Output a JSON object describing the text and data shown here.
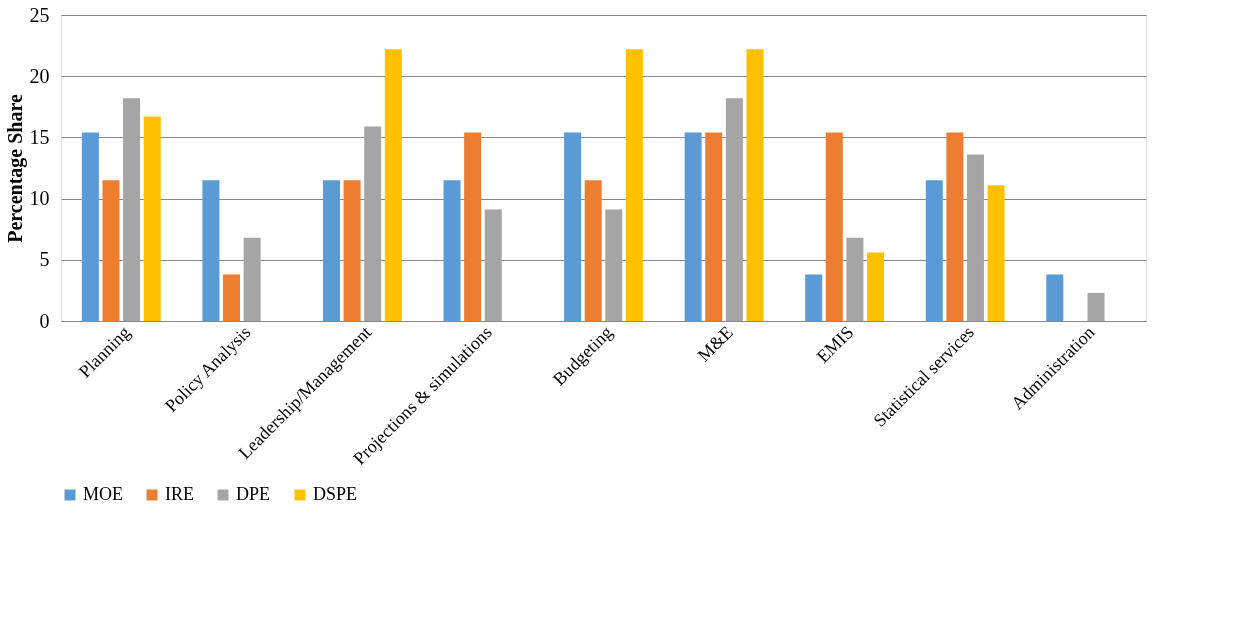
{
  "chart_data": {
    "type": "bar",
    "ylabel": "Percentage Share",
    "categories": [
      "Planning",
      "Policy Analysis",
      "Leadership/Management",
      "Projections & simulations",
      "Budgeting",
      "M&E",
      "EMIS",
      "Statistical services",
      "Administration"
    ],
    "series": [
      {
        "name": "MOE",
        "color": "#5b9bd5",
        "values": [
          15.4,
          11.5,
          11.5,
          11.5,
          15.4,
          15.4,
          3.8,
          11.5,
          3.8
        ]
      },
      {
        "name": "IRE",
        "color": "#ed7d31",
        "values": [
          11.5,
          3.8,
          11.5,
          15.4,
          11.5,
          15.4,
          15.4,
          15.4,
          0
        ]
      },
      {
        "name": "DPE",
        "color": "#a5a5a5",
        "values": [
          18.2,
          6.8,
          15.9,
          9.1,
          9.1,
          18.2,
          6.8,
          13.6,
          2.3
        ]
      },
      {
        "name": "DSPE",
        "color": "#ffc000",
        "values": [
          16.7,
          0,
          22.2,
          0,
          22.2,
          22.2,
          5.6,
          11.1,
          0
        ]
      }
    ],
    "ylim": [
      0,
      25
    ],
    "yticks": [
      0,
      5,
      10,
      15,
      20,
      25
    ],
    "grid": "y",
    "legend": "bottom"
  }
}
